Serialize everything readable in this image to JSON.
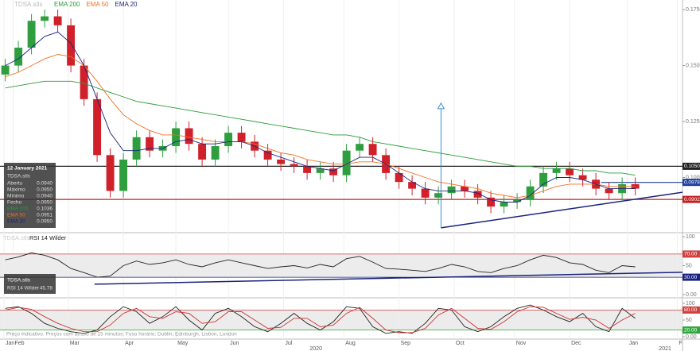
{
  "chart_data": [
    {
      "type": "candlestick",
      "title": "TDSA.stls",
      "x": [
        2,
        7,
        12,
        17,
        22,
        27,
        32,
        37,
        42,
        47,
        52,
        57,
        62,
        67,
        72,
        77,
        82,
        87,
        92,
        97,
        102,
        107,
        112,
        117,
        122,
        127,
        132,
        137,
        142,
        147,
        152,
        157,
        162,
        167,
        172,
        177,
        182,
        187,
        192,
        197,
        202,
        207,
        212,
        217,
        222,
        227,
        232,
        237,
        242
      ],
      "open": [
        0.146,
        0.15,
        0.158,
        0.17,
        0.172,
        0.168,
        0.15,
        0.135,
        0.11,
        0.094,
        0.108,
        0.118,
        0.112,
        0.114,
        0.122,
        0.115,
        0.108,
        0.114,
        0.12,
        0.116,
        0.112,
        0.108,
        0.106,
        0.105,
        0.102,
        0.104,
        0.101,
        0.112,
        0.115,
        0.11,
        0.102,
        0.098,
        0.095,
        0.091,
        0.093,
        0.096,
        0.094,
        0.091,
        0.087,
        0.089,
        0.09,
        0.096,
        0.102,
        0.104,
        0.101,
        0.099,
        0.095,
        0.093,
        0.097
      ],
      "high": [
        0.153,
        0.161,
        0.173,
        0.175,
        0.175,
        0.171,
        0.153,
        0.138,
        0.113,
        0.111,
        0.121,
        0.121,
        0.117,
        0.125,
        0.125,
        0.118,
        0.117,
        0.123,
        0.123,
        0.119,
        0.115,
        0.111,
        0.109,
        0.108,
        0.107,
        0.107,
        0.115,
        0.118,
        0.118,
        0.113,
        0.105,
        0.101,
        0.098,
        0.096,
        0.099,
        0.099,
        0.097,
        0.094,
        0.092,
        0.093,
        0.099,
        0.105,
        0.107,
        0.107,
        0.104,
        0.102,
        0.098,
        0.1,
        0.1
      ],
      "low": [
        0.143,
        0.147,
        0.155,
        0.167,
        0.165,
        0.147,
        0.132,
        0.107,
        0.091,
        0.091,
        0.105,
        0.109,
        0.109,
        0.111,
        0.112,
        0.105,
        0.105,
        0.111,
        0.113,
        0.109,
        0.105,
        0.103,
        0.102,
        0.099,
        0.099,
        0.098,
        0.098,
        0.109,
        0.107,
        0.099,
        0.095,
        0.092,
        0.088,
        0.088,
        0.09,
        0.091,
        0.088,
        0.084,
        0.084,
        0.086,
        0.087,
        0.093,
        0.099,
        0.098,
        0.096,
        0.092,
        0.09,
        0.09,
        0.092
      ],
      "close": [
        0.15,
        0.158,
        0.17,
        0.172,
        0.168,
        0.15,
        0.135,
        0.11,
        0.094,
        0.108,
        0.118,
        0.112,
        0.114,
        0.122,
        0.115,
        0.108,
        0.114,
        0.12,
        0.116,
        0.112,
        0.108,
        0.106,
        0.105,
        0.102,
        0.104,
        0.101,
        0.112,
        0.115,
        0.11,
        0.102,
        0.098,
        0.095,
        0.091,
        0.093,
        0.096,
        0.094,
        0.091,
        0.087,
        0.089,
        0.09,
        0.096,
        0.102,
        0.104,
        0.101,
        0.099,
        0.095,
        0.093,
        0.097,
        0.095
      ],
      "up_color": "#2e9e3e",
      "down_color": "#d0202a",
      "series": [
        {
          "name": "EMA 200",
          "color": "#2a9d3a",
          "values": [
            0.14,
            0.141,
            0.142,
            0.143,
            0.143,
            0.143,
            0.142,
            0.14,
            0.138,
            0.136,
            0.134,
            0.133,
            0.132,
            0.131,
            0.13,
            0.129,
            0.128,
            0.127,
            0.126,
            0.125,
            0.124,
            0.123,
            0.122,
            0.121,
            0.12,
            0.119,
            0.119,
            0.118,
            0.116,
            0.115,
            0.114,
            0.113,
            0.112,
            0.111,
            0.11,
            0.109,
            0.108,
            0.107,
            0.106,
            0.105,
            0.105,
            0.104,
            0.104,
            0.104,
            0.103,
            0.103,
            0.102,
            0.102,
            0.101
          ]
        },
        {
          "name": "EMA 50",
          "color": "#f07020",
          "values": [
            0.145,
            0.147,
            0.15,
            0.153,
            0.155,
            0.154,
            0.15,
            0.143,
            0.135,
            0.128,
            0.124,
            0.121,
            0.119,
            0.119,
            0.118,
            0.117,
            0.116,
            0.116,
            0.116,
            0.115,
            0.113,
            0.111,
            0.11,
            0.108,
            0.107,
            0.106,
            0.106,
            0.107,
            0.107,
            0.106,
            0.104,
            0.102,
            0.1,
            0.098,
            0.097,
            0.096,
            0.095,
            0.093,
            0.092,
            0.091,
            0.092,
            0.094,
            0.096,
            0.097,
            0.097,
            0.097,
            0.096,
            0.096,
            0.096
          ]
        },
        {
          "name": "EMA 20",
          "color": "#1a237e",
          "values": [
            0.15,
            0.153,
            0.158,
            0.163,
            0.165,
            0.16,
            0.15,
            0.135,
            0.12,
            0.112,
            0.112,
            0.113,
            0.113,
            0.116,
            0.117,
            0.115,
            0.115,
            0.116,
            0.116,
            0.114,
            0.111,
            0.109,
            0.107,
            0.105,
            0.104,
            0.103,
            0.106,
            0.109,
            0.109,
            0.106,
            0.102,
            0.098,
            0.095,
            0.094,
            0.094,
            0.094,
            0.093,
            0.09,
            0.089,
            0.089,
            0.092,
            0.097,
            0.1,
            0.1,
            0.099,
            0.097,
            0.095,
            0.095,
            0.095
          ]
        }
      ],
      "xlim": [
        0,
        260
      ],
      "ylim": [
        0.0764,
        0.1793
      ],
      "yticks": [
        {
          "value": 0.175,
          "label": "0.1750"
        },
        {
          "value": 0.15,
          "label": "0.1500"
        },
        {
          "value": 0.125,
          "label": "0.1250"
        },
        {
          "value": 0.1,
          "label": "0.1000"
        }
      ],
      "levels": [
        {
          "value": 0.105,
          "label": "0.1050",
          "color": "#222222"
        },
        {
          "value": 0.0978,
          "label": "0.0978",
          "color": "#1c3f9e",
          "x_start": 229
        },
        {
          "value": 0.0902,
          "label": "0.0902",
          "color": "#c02020"
        }
      ],
      "trendline": {
        "x": [
          168,
          260
        ],
        "y": [
          0.0775,
          0.0934
        ],
        "color": "#1a237e"
      },
      "arrow": {
        "x": 168,
        "y": [
          0.0775,
          0.1332
        ],
        "color": "#3a8fd0"
      },
      "info_box": {
        "date": "12 January 2021",
        "symbol": "TDSA.stls",
        "rows": [
          {
            "label": "Abertu",
            "value": "0.0940"
          },
          {
            "label": "Máximo",
            "value": "0.0950"
          },
          {
            "label": "Mínimo",
            "value": "0.0940"
          },
          {
            "label": "Fecho",
            "value": "0.0950"
          },
          {
            "label": "EMA 200",
            "value": "0.1036"
          },
          {
            "label": "EMA 50",
            "value": "0.0951"
          },
          {
            "label": "EMA 20",
            "value": "0.0950"
          }
        ]
      }
    },
    {
      "type": "line",
      "title": "RSI 14 Wilder",
      "symbol": "TDSA.stls",
      "last_value": "45.78",
      "x": [
        2,
        7,
        12,
        17,
        22,
        27,
        32,
        37,
        42,
        47,
        52,
        57,
        62,
        67,
        72,
        77,
        82,
        87,
        92,
        97,
        102,
        107,
        112,
        117,
        122,
        127,
        132,
        137,
        142,
        147,
        152,
        157,
        162,
        167,
        172,
        177,
        182,
        187,
        192,
        197,
        202,
        207,
        212,
        217,
        222,
        227,
        232,
        237,
        242
      ],
      "series": [
        {
          "name": "RSI",
          "color": "#222222",
          "values": [
            60,
            65,
            72,
            68,
            60,
            45,
            38,
            30,
            32,
            50,
            58,
            52,
            55,
            60,
            52,
            48,
            55,
            60,
            55,
            50,
            45,
            48,
            50,
            46,
            52,
            48,
            62,
            66,
            56,
            45,
            44,
            42,
            40,
            45,
            52,
            48,
            40,
            38,
            45,
            50,
            60,
            68,
            64,
            55,
            52,
            42,
            38,
            50,
            48
          ]
        }
      ],
      "xlim": [
        0,
        260
      ],
      "ylim": [
        0,
        100
      ],
      "yticks": [
        100,
        50,
        {
          "value": 0,
          "label": "0.00"
        }
      ],
      "levels": [
        {
          "value": 70,
          "label": "70.00",
          "color": "#d04040"
        },
        {
          "value": 30,
          "label": "30.00",
          "color": "#1a237e"
        }
      ],
      "band": true,
      "trendline": {
        "x": [
          36,
          260
        ],
        "y": [
          18,
          38.6
        ],
        "color": "#1a237e"
      }
    },
    {
      "type": "line",
      "footer": "Preço indicativo. Preços com atraso de 15 minutos. Fuso horário: Dublin, Edinburgh, Lisbon, London",
      "x": [
        2,
        7,
        12,
        17,
        22,
        27,
        32,
        37,
        42,
        47,
        52,
        57,
        62,
        67,
        72,
        77,
        82,
        87,
        92,
        97,
        102,
        107,
        112,
        117,
        122,
        127,
        132,
        137,
        142,
        147,
        152,
        157,
        162,
        167,
        172,
        177,
        182,
        187,
        192,
        197,
        202,
        207,
        212,
        217,
        222,
        227,
        232,
        237,
        242
      ],
      "series": [
        {
          "name": "%K",
          "color": "#222222",
          "values": [
            85,
            90,
            70,
            40,
            25,
            15,
            10,
            20,
            60,
            90,
            75,
            40,
            60,
            90,
            50,
            20,
            70,
            85,
            60,
            30,
            15,
            40,
            70,
            40,
            20,
            45,
            90,
            85,
            30,
            10,
            15,
            10,
            40,
            85,
            80,
            30,
            15,
            30,
            60,
            85,
            95,
            80,
            60,
            45,
            70,
            30,
            15,
            85,
            55
          ]
        },
        {
          "name": "%D",
          "color": "#d03030",
          "values": [
            80,
            88,
            82,
            60,
            40,
            25,
            15,
            15,
            35,
            70,
            85,
            60,
            55,
            75,
            70,
            40,
            45,
            75,
            75,
            50,
            25,
            28,
            55,
            55,
            30,
            35,
            70,
            88,
            55,
            20,
            12,
            12,
            25,
            65,
            85,
            55,
            25,
            22,
            45,
            75,
            90,
            88,
            70,
            52,
            58,
            50,
            25,
            50,
            70
          ]
        }
      ],
      "xlim": [
        0,
        260
      ],
      "ylim": [
        0,
        100
      ],
      "yticks": [
        100,
        50,
        {
          "value": 0,
          "label": "0.00"
        }
      ],
      "levels": [
        {
          "value": 80,
          "label": "80.00",
          "color": "#d04040"
        },
        {
          "value": 20,
          "label": "20.00",
          "color": "#2ea83a"
        }
      ],
      "band": true,
      "grid": true,
      "xticks": [
        {
          "value": 1.5,
          "label": "Jan"
        },
        {
          "value": 5,
          "label": "Feb"
        },
        {
          "value": 26,
          "label": "Mar"
        },
        {
          "value": 47,
          "label": "Apr"
        },
        {
          "value": 67,
          "label": "May"
        },
        {
          "value": 87,
          "label": "Jun"
        },
        {
          "value": 108,
          "label": "Jul"
        },
        {
          "value": 131,
          "label": "Aug"
        },
        {
          "value": 152,
          "label": "Sep"
        },
        {
          "value": 173,
          "label": "Oct"
        },
        {
          "value": 196,
          "label": "Nov"
        },
        {
          "value": 217,
          "label": "Dec"
        },
        {
          "value": 239,
          "label": "Jan"
        },
        {
          "value": 258,
          "label": "F"
        }
      ],
      "year_labels": [
        {
          "value": 118,
          "label": "2020"
        },
        {
          "value": 251,
          "label": "2021"
        }
      ]
    }
  ]
}
